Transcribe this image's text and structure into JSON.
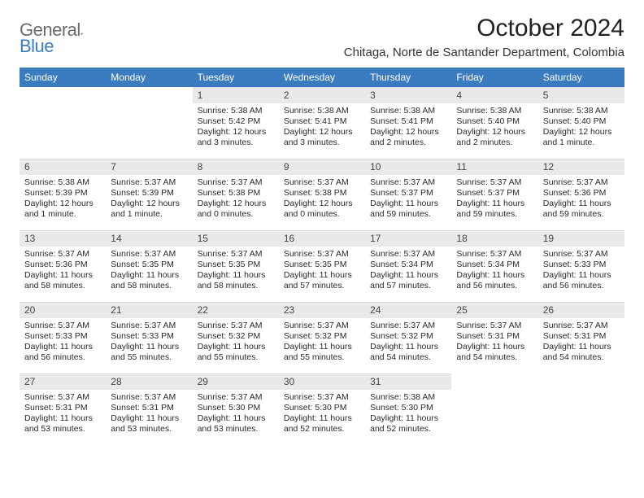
{
  "brand": {
    "name_a": "General",
    "name_b": "Blue"
  },
  "title": "October 2024",
  "location": "Chitaga, Norte de Santander Department, Colombia",
  "colors": {
    "header_bg": "#3b7bbf",
    "header_text": "#ffffff",
    "daynum_bg": "#e9e9e9",
    "text": "#2a2a2a",
    "logo_gray": "#6b6b6b",
    "logo_blue": "#3b7bbf"
  },
  "weekdays": [
    "Sunday",
    "Monday",
    "Tuesday",
    "Wednesday",
    "Thursday",
    "Friday",
    "Saturday"
  ],
  "weeks": [
    [
      null,
      null,
      {
        "n": "1",
        "sr": "Sunrise: 5:38 AM",
        "ss": "Sunset: 5:42 PM",
        "dl": "Daylight: 12 hours and 3 minutes."
      },
      {
        "n": "2",
        "sr": "Sunrise: 5:38 AM",
        "ss": "Sunset: 5:41 PM",
        "dl": "Daylight: 12 hours and 3 minutes."
      },
      {
        "n": "3",
        "sr": "Sunrise: 5:38 AM",
        "ss": "Sunset: 5:41 PM",
        "dl": "Daylight: 12 hours and 2 minutes."
      },
      {
        "n": "4",
        "sr": "Sunrise: 5:38 AM",
        "ss": "Sunset: 5:40 PM",
        "dl": "Daylight: 12 hours and 2 minutes."
      },
      {
        "n": "5",
        "sr": "Sunrise: 5:38 AM",
        "ss": "Sunset: 5:40 PM",
        "dl": "Daylight: 12 hours and 1 minute."
      }
    ],
    [
      {
        "n": "6",
        "sr": "Sunrise: 5:38 AM",
        "ss": "Sunset: 5:39 PM",
        "dl": "Daylight: 12 hours and 1 minute."
      },
      {
        "n": "7",
        "sr": "Sunrise: 5:37 AM",
        "ss": "Sunset: 5:39 PM",
        "dl": "Daylight: 12 hours and 1 minute."
      },
      {
        "n": "8",
        "sr": "Sunrise: 5:37 AM",
        "ss": "Sunset: 5:38 PM",
        "dl": "Daylight: 12 hours and 0 minutes."
      },
      {
        "n": "9",
        "sr": "Sunrise: 5:37 AM",
        "ss": "Sunset: 5:38 PM",
        "dl": "Daylight: 12 hours and 0 minutes."
      },
      {
        "n": "10",
        "sr": "Sunrise: 5:37 AM",
        "ss": "Sunset: 5:37 PM",
        "dl": "Daylight: 11 hours and 59 minutes."
      },
      {
        "n": "11",
        "sr": "Sunrise: 5:37 AM",
        "ss": "Sunset: 5:37 PM",
        "dl": "Daylight: 11 hours and 59 minutes."
      },
      {
        "n": "12",
        "sr": "Sunrise: 5:37 AM",
        "ss": "Sunset: 5:36 PM",
        "dl": "Daylight: 11 hours and 59 minutes."
      }
    ],
    [
      {
        "n": "13",
        "sr": "Sunrise: 5:37 AM",
        "ss": "Sunset: 5:36 PM",
        "dl": "Daylight: 11 hours and 58 minutes."
      },
      {
        "n": "14",
        "sr": "Sunrise: 5:37 AM",
        "ss": "Sunset: 5:35 PM",
        "dl": "Daylight: 11 hours and 58 minutes."
      },
      {
        "n": "15",
        "sr": "Sunrise: 5:37 AM",
        "ss": "Sunset: 5:35 PM",
        "dl": "Daylight: 11 hours and 58 minutes."
      },
      {
        "n": "16",
        "sr": "Sunrise: 5:37 AM",
        "ss": "Sunset: 5:35 PM",
        "dl": "Daylight: 11 hours and 57 minutes."
      },
      {
        "n": "17",
        "sr": "Sunrise: 5:37 AM",
        "ss": "Sunset: 5:34 PM",
        "dl": "Daylight: 11 hours and 57 minutes."
      },
      {
        "n": "18",
        "sr": "Sunrise: 5:37 AM",
        "ss": "Sunset: 5:34 PM",
        "dl": "Daylight: 11 hours and 56 minutes."
      },
      {
        "n": "19",
        "sr": "Sunrise: 5:37 AM",
        "ss": "Sunset: 5:33 PM",
        "dl": "Daylight: 11 hours and 56 minutes."
      }
    ],
    [
      {
        "n": "20",
        "sr": "Sunrise: 5:37 AM",
        "ss": "Sunset: 5:33 PM",
        "dl": "Daylight: 11 hours and 56 minutes."
      },
      {
        "n": "21",
        "sr": "Sunrise: 5:37 AM",
        "ss": "Sunset: 5:33 PM",
        "dl": "Daylight: 11 hours and 55 minutes."
      },
      {
        "n": "22",
        "sr": "Sunrise: 5:37 AM",
        "ss": "Sunset: 5:32 PM",
        "dl": "Daylight: 11 hours and 55 minutes."
      },
      {
        "n": "23",
        "sr": "Sunrise: 5:37 AM",
        "ss": "Sunset: 5:32 PM",
        "dl": "Daylight: 11 hours and 55 minutes."
      },
      {
        "n": "24",
        "sr": "Sunrise: 5:37 AM",
        "ss": "Sunset: 5:32 PM",
        "dl": "Daylight: 11 hours and 54 minutes."
      },
      {
        "n": "25",
        "sr": "Sunrise: 5:37 AM",
        "ss": "Sunset: 5:31 PM",
        "dl": "Daylight: 11 hours and 54 minutes."
      },
      {
        "n": "26",
        "sr": "Sunrise: 5:37 AM",
        "ss": "Sunset: 5:31 PM",
        "dl": "Daylight: 11 hours and 54 minutes."
      }
    ],
    [
      {
        "n": "27",
        "sr": "Sunrise: 5:37 AM",
        "ss": "Sunset: 5:31 PM",
        "dl": "Daylight: 11 hours and 53 minutes."
      },
      {
        "n": "28",
        "sr": "Sunrise: 5:37 AM",
        "ss": "Sunset: 5:31 PM",
        "dl": "Daylight: 11 hours and 53 minutes."
      },
      {
        "n": "29",
        "sr": "Sunrise: 5:37 AM",
        "ss": "Sunset: 5:30 PM",
        "dl": "Daylight: 11 hours and 53 minutes."
      },
      {
        "n": "30",
        "sr": "Sunrise: 5:37 AM",
        "ss": "Sunset: 5:30 PM",
        "dl": "Daylight: 11 hours and 52 minutes."
      },
      {
        "n": "31",
        "sr": "Sunrise: 5:38 AM",
        "ss": "Sunset: 5:30 PM",
        "dl": "Daylight: 11 hours and 52 minutes."
      },
      null,
      null
    ]
  ]
}
